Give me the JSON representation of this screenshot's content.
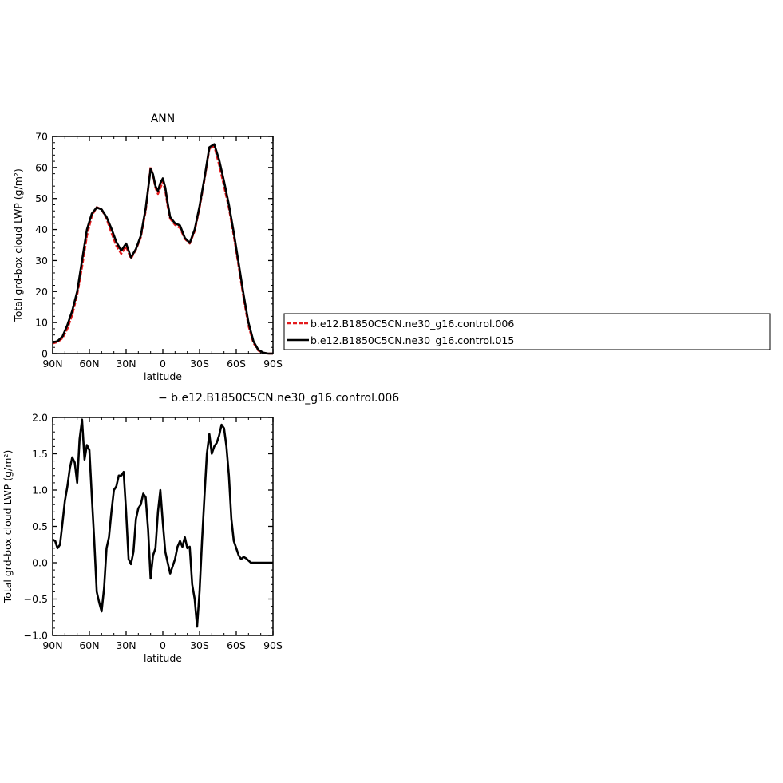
{
  "chart_data": [
    {
      "type": "line",
      "title": "ANN",
      "xlabel": "latitude",
      "ylabel": "Total grd-box cloud LWP (g/m²)",
      "xlim": [
        90,
        -90
      ],
      "ylim": [
        0,
        70
      ],
      "x_ticks": [
        90,
        60,
        30,
        0,
        -30,
        -60,
        -90
      ],
      "x_tick_labels": [
        "90N",
        "60N",
        "30N",
        "0",
        "30S",
        "60S",
        "90S"
      ],
      "y_ticks": [
        0,
        10,
        20,
        30,
        40,
        50,
        60,
        70
      ],
      "y_tick_labels": [
        "0",
        "10",
        "20",
        "30",
        "40",
        "50",
        "60",
        "70"
      ],
      "legend_position": "right",
      "series": [
        {
          "name": "b.e12.B1850C5CN.ne30_g16.control.006",
          "color": "#e41a1c",
          "style": "dashed",
          "x": [
            90,
            86,
            82,
            78,
            74,
            70,
            66,
            62,
            58,
            54,
            50,
            46,
            42,
            38,
            34,
            30,
            26,
            22,
            18,
            14,
            10,
            8,
            6,
            4,
            2,
            0,
            -2,
            -4,
            -6,
            -10,
            -14,
            -18,
            -22,
            -26,
            -30,
            -34,
            -38,
            -42,
            -46,
            -50,
            -54,
            -58,
            -62,
            -66,
            -70,
            -74,
            -78,
            -82,
            -86,
            -90
          ],
          "values": [
            3.3,
            3.7,
            5,
            8,
            12.5,
            19,
            28,
            38,
            44.5,
            47.2,
            46.5,
            43.5,
            39,
            34.8,
            32.2,
            34.5,
            30.6,
            33.5,
            37.5,
            46,
            60.2,
            57.5,
            53.5,
            51.5,
            53.5,
            55.5,
            52.5,
            47.5,
            43.5,
            41.5,
            40.5,
            37,
            35.5,
            39.5,
            47,
            56,
            66,
            67,
            61,
            54,
            47,
            38,
            28,
            18,
            9,
            3.5,
            1,
            0.2,
            0,
            0
          ]
        },
        {
          "name": "b.e12.B1850C5CN.ne30_g16.control.015",
          "color": "#000000",
          "style": "solid",
          "x": [
            90,
            86,
            82,
            78,
            74,
            70,
            66,
            62,
            58,
            54,
            50,
            46,
            42,
            38,
            34,
            30,
            26,
            22,
            18,
            14,
            10,
            8,
            6,
            4,
            2,
            0,
            -2,
            -4,
            -6,
            -10,
            -14,
            -18,
            -22,
            -26,
            -30,
            -34,
            -38,
            -42,
            -46,
            -50,
            -54,
            -58,
            -62,
            -66,
            -70,
            -74,
            -78,
            -82,
            -86,
            -90
          ],
          "values": [
            3.6,
            4,
            5.5,
            9.2,
            13.8,
            20,
            30,
            40,
            45.2,
            47.1,
            46.5,
            44,
            40.3,
            36,
            33.2,
            35.5,
            31,
            33.7,
            38,
            46.8,
            59.5,
            57.8,
            54,
            52.5,
            55,
            56.5,
            53.5,
            48.5,
            44,
            42,
            41.3,
            37.3,
            35.7,
            40,
            47.5,
            56.5,
            66.5,
            67.5,
            62.5,
            55.5,
            48,
            39,
            29,
            19,
            10,
            4,
            1.2,
            0.3,
            0,
            0
          ]
        }
      ]
    },
    {
      "type": "line",
      "title": "− b.e12.B1850C5CN.ne30_g16.control.006",
      "xlabel": "latitude",
      "ylabel": "Total grd-box cloud LWP (g/m²)",
      "xlim": [
        90,
        -90
      ],
      "ylim": [
        -1.0,
        2.0
      ],
      "x_ticks": [
        90,
        60,
        30,
        0,
        -30,
        -60,
        -90
      ],
      "x_tick_labels": [
        "90N",
        "60N",
        "30N",
        "0",
        "30S",
        "60S",
        "90S"
      ],
      "y_ticks": [
        -1.0,
        -0.5,
        0.0,
        0.5,
        1.0,
        1.5,
        2.0
      ],
      "y_tick_labels": [
        "−1.0",
        "−0.5",
        "0.0",
        "0.5",
        "1.0",
        "1.5",
        "2.0"
      ],
      "series": [
        {
          "color": "#000000",
          "x": [
            90,
            88,
            86,
            84,
            82,
            80,
            78,
            76,
            74,
            72,
            70,
            68,
            66,
            64,
            62,
            60,
            58,
            56,
            54,
            52,
            50,
            48,
            46,
            44,
            42,
            40,
            38,
            36,
            34,
            32,
            30,
            28,
            26,
            24,
            22,
            20,
            18,
            16,
            14,
            12,
            10,
            8,
            6,
            4,
            2,
            0,
            -2,
            -4,
            -6,
            -8,
            -10,
            -12,
            -14,
            -16,
            -18,
            -20,
            -22,
            -24,
            -26,
            -28,
            -30,
            -32,
            -34,
            -36,
            -38,
            -40,
            -42,
            -44,
            -46,
            -48,
            -50,
            -52,
            -54,
            -56,
            -58,
            -60,
            -62,
            -64,
            -66,
            -68,
            -70,
            -72,
            -74,
            -76,
            -78,
            -80,
            -82,
            -84,
            -86,
            -88,
            -90
          ],
          "values": [
            0.32,
            0.3,
            0.2,
            0.25,
            0.55,
            0.85,
            1.05,
            1.3,
            1.45,
            1.38,
            1.1,
            1.7,
            1.97,
            1.42,
            1.62,
            1.55,
            0.9,
            0.3,
            -0.4,
            -0.55,
            -0.67,
            -0.35,
            0.2,
            0.35,
            0.7,
            1.0,
            1.05,
            1.2,
            1.2,
            1.25,
            0.7,
            0.05,
            -0.02,
            0.15,
            0.6,
            0.75,
            0.8,
            0.95,
            0.9,
            0.45,
            -0.22,
            0.1,
            0.2,
            0.7,
            1.0,
            0.55,
            0.15,
            0.0,
            -0.15,
            -0.05,
            0.05,
            0.22,
            0.3,
            0.22,
            0.35,
            0.2,
            0.22,
            -0.3,
            -0.5,
            -0.88,
            -0.4,
            0.3,
            0.9,
            1.5,
            1.77,
            1.5,
            1.6,
            1.65,
            1.75,
            1.9,
            1.85,
            1.6,
            1.2,
            0.6,
            0.3,
            0.2,
            0.1,
            0.05,
            0.08,
            0.06,
            0.03,
            0.0,
            0.0,
            0.0,
            0.0,
            0.0,
            0.0,
            0.0,
            0.0,
            0.0,
            0.0
          ]
        }
      ]
    }
  ]
}
